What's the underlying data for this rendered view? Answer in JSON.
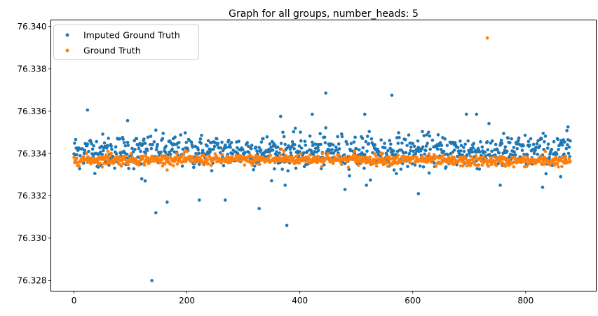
{
  "chart_data": {
    "type": "scatter",
    "title": "Graph for all groups, number_heads: 5",
    "xlabel": "",
    "ylabel": "",
    "xlim": [
      -41,
      925
    ],
    "ylim": [
      76.3275,
      76.3403
    ],
    "x_ticks": [
      0,
      200,
      400,
      600,
      800
    ],
    "x_tick_labels": [
      "0",
      "200",
      "400",
      "600",
      "800"
    ],
    "y_ticks": [
      76.328,
      76.33,
      76.332,
      76.334,
      76.336,
      76.338,
      76.34
    ],
    "y_tick_labels": [
      "76.328",
      "76.330",
      "76.332",
      "76.334",
      "76.336",
      "76.338",
      "76.340"
    ],
    "grid": false,
    "legend_position": "top-left",
    "series": [
      {
        "name": "Imputed Ground Truth",
        "color": "#1f77b4",
        "n_points": 880,
        "typical_center": 76.3341,
        "typical_spread": 0.0004,
        "outliers": [
          {
            "x": 24,
            "y": 76.33605
          },
          {
            "x": 95,
            "y": 76.33555
          },
          {
            "x": 120,
            "y": 76.3328
          },
          {
            "x": 126,
            "y": 76.3327
          },
          {
            "x": 138,
            "y": 76.328
          },
          {
            "x": 145,
            "y": 76.3312
          },
          {
            "x": 165,
            "y": 76.3317
          },
          {
            "x": 222,
            "y": 76.3318
          },
          {
            "x": 268,
            "y": 76.3318
          },
          {
            "x": 328,
            "y": 76.3314
          },
          {
            "x": 366,
            "y": 76.33575
          },
          {
            "x": 374,
            "y": 76.3325
          },
          {
            "x": 377,
            "y": 76.3306
          },
          {
            "x": 422,
            "y": 76.33585
          },
          {
            "x": 446,
            "y": 76.33685
          },
          {
            "x": 480,
            "y": 76.3323
          },
          {
            "x": 515,
            "y": 76.33585
          },
          {
            "x": 518,
            "y": 76.3325
          },
          {
            "x": 563,
            "y": 76.33675
          },
          {
            "x": 610,
            "y": 76.3321
          },
          {
            "x": 695,
            "y": 76.33585
          },
          {
            "x": 713,
            "y": 76.33585
          },
          {
            "x": 755,
            "y": 76.3325
          },
          {
            "x": 830,
            "y": 76.3324
          },
          {
            "x": 862,
            "y": 76.3329
          },
          {
            "x": 875,
            "y": 76.33525
          }
        ]
      },
      {
        "name": "Ground Truth",
        "color": "#ff7f0e",
        "n_points": 880,
        "typical_center": 76.33355,
        "typical_spread": 0.00012,
        "outliers": [
          {
            "x": 732,
            "y": 76.33945
          },
          {
            "x": 60,
            "y": 76.3341
          },
          {
            "x": 66,
            "y": 76.334
          },
          {
            "x": 200,
            "y": 76.3341
          },
          {
            "x": 368,
            "y": 76.3342
          },
          {
            "x": 372,
            "y": 76.3341
          },
          {
            "x": 440,
            "y": 76.334
          },
          {
            "x": 450,
            "y": 76.334
          },
          {
            "x": 497,
            "y": 76.3341
          },
          {
            "x": 545,
            "y": 76.334
          },
          {
            "x": 835,
            "y": 76.3341
          }
        ]
      }
    ]
  }
}
